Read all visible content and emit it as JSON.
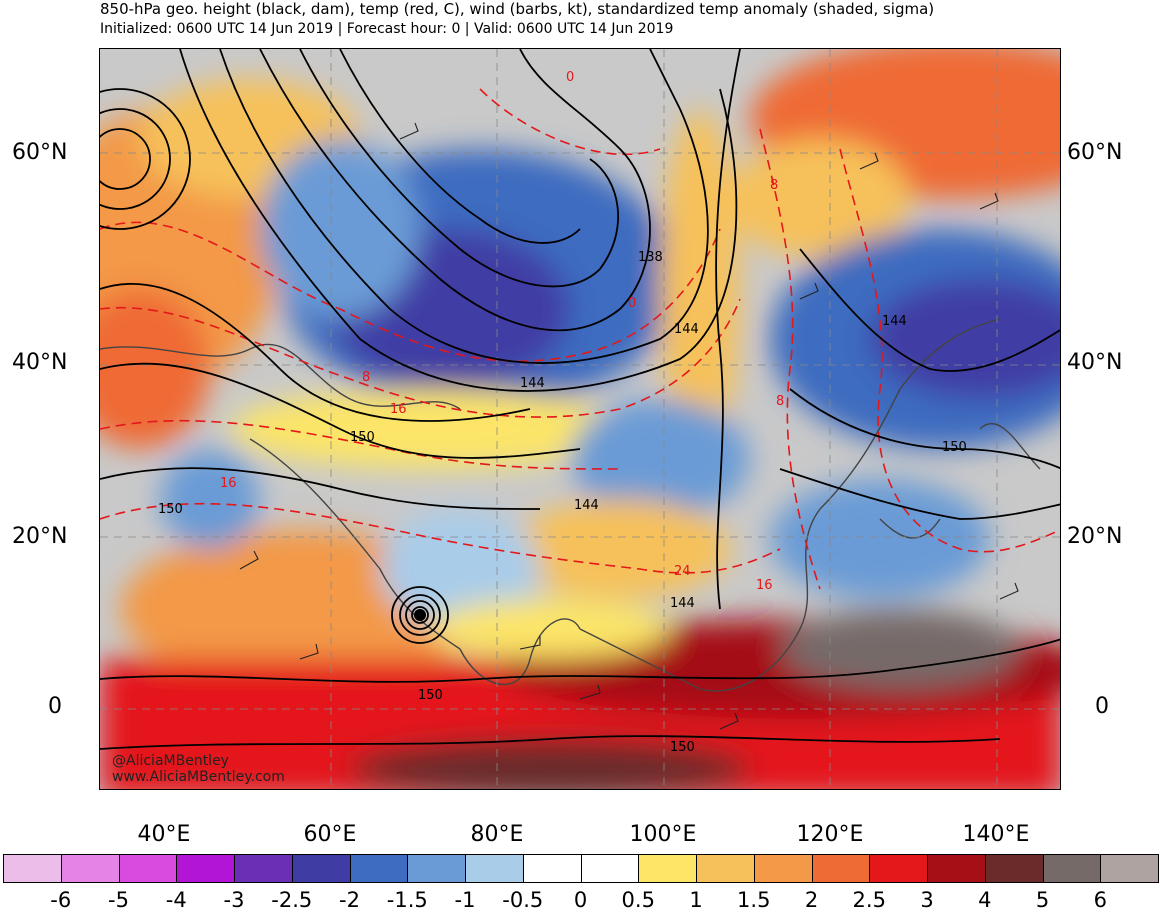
{
  "title": "850-hPa geo. height (black, dam), temp (red, C), wind (barbs, kt), standardized temp anomaly (shaded, sigma)",
  "subtitle": "Initialized: 0600 UTC 14 Jun 2019 | Forecast hour: 0 | Valid: 0600 UTC 14 Jun 2019",
  "map": {
    "lat_labels": [
      "60°N",
      "40°N",
      "20°N",
      "0"
    ],
    "lon_labels": [
      "40°E",
      "60°E",
      "80°E",
      "100°E",
      "120°E",
      "140°E"
    ],
    "height_labels": [
      "138",
      "144",
      "144",
      "144",
      "150",
      "150",
      "150",
      "150",
      "144",
      "144",
      "150"
    ],
    "temp_labels": [
      "0",
      "8",
      "0",
      "8",
      "16",
      "16",
      "24",
      "8",
      "16"
    ],
    "credit_line1": "@AliciaMBentley",
    "credit_line2": "www.AliciaMBentley.com"
  },
  "colorbar": {
    "labels": [
      "-6",
      "-5",
      "-4",
      "-3",
      "-2.5",
      "-2",
      "-1.5",
      "-1",
      "-0.5",
      "0",
      "0.5",
      "1",
      "1.5",
      "2",
      "2.5",
      "3",
      "4",
      "5",
      "6"
    ],
    "colors": [
      "#ecbde8",
      "#e583e6",
      "#d74cdf",
      "#b315d6",
      "#6b2fb5",
      "#3f3ca4",
      "#3d6cc0",
      "#6b9bd6",
      "#a9cce9",
      "#ffffff",
      "#ffffff",
      "#fce567",
      "#f6c15a",
      "#f39947",
      "#ef6b35",
      "#e4171a",
      "#a50f15",
      "#6b2b2b",
      "#766a69",
      "#aea3a0"
    ]
  }
}
